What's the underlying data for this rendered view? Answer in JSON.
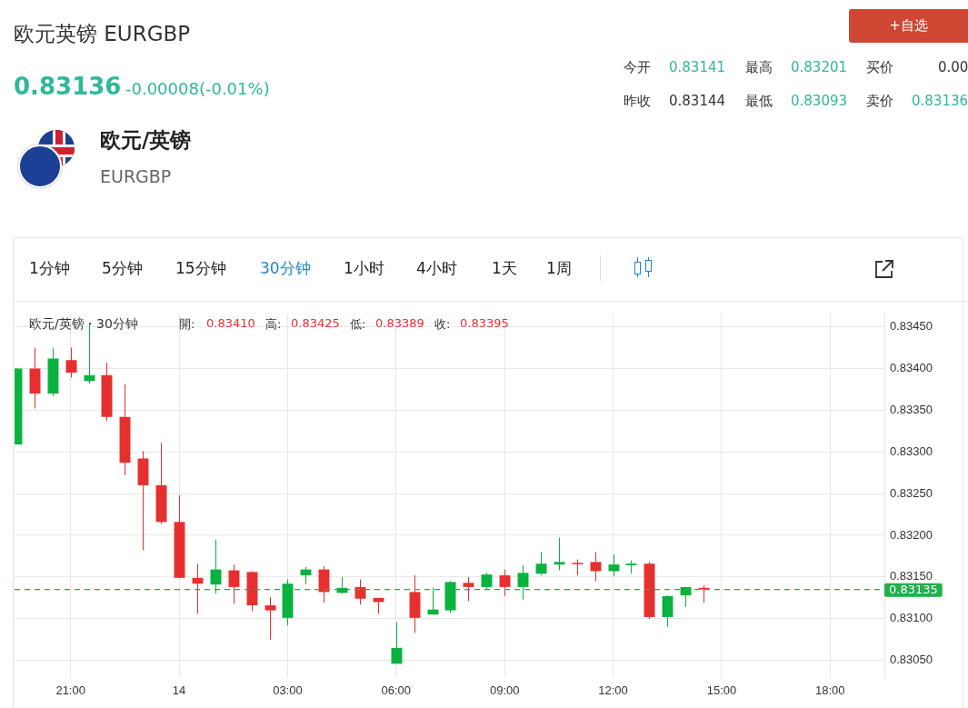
{
  "chart_data": {
    "type": "candlestick",
    "title": "欧元英镑 EURGBP",
    "annotations": [
      "0.83136",
      "-0.00008(-0.01%)",
      "欧元/英镑",
      "EURGBP",
      "今开",
      "0.83141",
      "最高",
      "0.83201",
      "买价",
      "0.00",
      "昨收",
      "0.83144",
      "最低",
      "0.83093",
      "卖价",
      "0.83136",
      "+自选",
      "1分钟",
      "5分钟",
      "15分钟",
      "30分钟",
      "1小时",
      "4小时",
      "1天",
      "1周",
      "欧元/英镑 · 30分钟",
      "開:",
      "0.83410",
      "高:",
      "0.83425",
      "低:",
      "0.83389",
      "收:",
      "0.83395"
    ],
    "categories": [
      null,
      null,
      null,
      "21:00",
      null,
      null,
      null,
      null,
      null,
      "14",
      null,
      null,
      null,
      null,
      null,
      "03:00",
      null,
      null,
      null,
      null,
      null,
      "06:00",
      null,
      null,
      null,
      null,
      null,
      "09:00",
      null,
      null,
      null,
      null,
      null,
      "12:00",
      null,
      null,
      null,
      null,
      null,
      "15:00",
      null,
      null,
      null,
      null,
      null,
      "18:00",
      null,
      null,
      null
    ],
    "ohlc": [
      [
        0.83309,
        0.834,
        0.83309,
        0.834
      ],
      [
        0.834,
        0.83425,
        0.83352,
        0.8337
      ],
      [
        0.8337,
        0.83425,
        0.83367,
        0.83412
      ],
      [
        0.8341,
        0.83425,
        0.83389,
        0.83395
      ],
      [
        0.83385,
        0.83455,
        0.83382,
        0.83392
      ],
      [
        0.83392,
        0.83407,
        0.83337,
        0.83342
      ],
      [
        0.83342,
        0.83381,
        0.83272,
        0.83287
      ],
      [
        0.83292,
        0.83301,
        0.83182,
        0.8326
      ],
      [
        0.8326,
        0.83311,
        0.83214,
        0.83216
      ],
      [
        0.83216,
        0.83248,
        0.83149,
        0.83149
      ],
      [
        0.83149,
        0.83166,
        0.83106,
        0.83142
      ],
      [
        0.83141,
        0.83195,
        0.8313,
        0.83159
      ],
      [
        0.83158,
        0.83165,
        0.83118,
        0.83138
      ],
      [
        0.83156,
        0.83157,
        0.83109,
        0.83116
      ],
      [
        0.83116,
        0.83126,
        0.83075,
        0.8311
      ],
      [
        0.83101,
        0.83147,
        0.83092,
        0.83142
      ],
      [
        0.83152,
        0.83162,
        0.83141,
        0.83159
      ],
      [
        0.83159,
        0.83163,
        0.83119,
        0.83132
      ],
      [
        0.83131,
        0.8315,
        0.8313,
        0.83137
      ],
      [
        0.83138,
        0.83147,
        0.83117,
        0.83124
      ],
      [
        0.83125,
        0.83125,
        0.83106,
        0.8312
      ],
      [
        0.83046,
        0.83096,
        0.83046,
        0.83065
      ],
      [
        0.83132,
        0.83152,
        0.83083,
        0.83101
      ],
      [
        0.83105,
        0.83137,
        0.83105,
        0.83111
      ],
      [
        0.8311,
        0.83145,
        0.83107,
        0.83144
      ],
      [
        0.83143,
        0.8315,
        0.83121,
        0.83138
      ],
      [
        0.83138,
        0.83155,
        0.83135,
        0.83153
      ],
      [
        0.83152,
        0.83159,
        0.83127,
        0.83138
      ],
      [
        0.83138,
        0.83164,
        0.83123,
        0.83155
      ],
      [
        0.83154,
        0.8318,
        0.83152,
        0.83166
      ],
      [
        0.83165,
        0.83197,
        0.83158,
        0.83168
      ],
      [
        0.83167,
        0.83171,
        0.83152,
        0.83166
      ],
      [
        0.83168,
        0.8318,
        0.83145,
        0.83157
      ],
      [
        0.83157,
        0.83177,
        0.83151,
        0.83165
      ],
      [
        0.83164,
        0.8317,
        0.83154,
        0.83166
      ],
      [
        0.83166,
        0.83168,
        0.831,
        0.83102
      ],
      [
        0.83102,
        0.83128,
        0.8309,
        0.83127
      ],
      [
        0.83128,
        0.83138,
        0.83114,
        0.83138
      ],
      [
        0.83137,
        0.8314,
        0.83119,
        0.83135
      ],
      null,
      null,
      null,
      null,
      null,
      null,
      null,
      null,
      null,
      null
    ],
    "colors": [
      "#0ab23f",
      "#e5302f",
      "#0ab23f",
      "#e5302f",
      "#0ab23f",
      "#e5302f",
      "#e5302f",
      "#e5302f",
      "#e5302f",
      "#e5302f",
      "#e5302f",
      "#0ab23f",
      "#e5302f",
      "#e5302f",
      "#e5302f",
      "#0ab23f",
      "#0ab23f",
      "#e5302f",
      "#0ab23f",
      "#e5302f",
      "#e5302f",
      "#0ab23f",
      "#e5302f",
      "#0ab23f",
      "#0ab23f",
      "#e5302f",
      "#0ab23f",
      "#e5302f",
      "#0ab23f",
      "#0ab23f",
      "#0ab23f",
      "#e5302f",
      "#e5302f",
      "#0ab23f",
      "#0ab23f",
      "#e5302f",
      "#0ab23f",
      "#0ab23f",
      "#e5302f",
      null,
      null,
      null,
      null,
      null,
      null,
      null,
      null,
      null,
      null
    ],
    "ylim": [
      0.8303,
      0.83465
    ],
    "yticks": [
      {
        "value": 0.8305,
        "label": "0.83050"
      },
      {
        "value": 0.831,
        "label": "0.83100"
      },
      {
        "value": 0.8315,
        "label": "0.83150"
      },
      {
        "value": 0.832,
        "label": "0.83200"
      },
      {
        "value": 0.8325,
        "label": "0.83250"
      },
      {
        "value": 0.833,
        "label": "0.83300"
      },
      {
        "value": 0.8335,
        "label": "0.83350"
      },
      {
        "value": 0.834,
        "label": "0.83400"
      },
      {
        "value": 0.8345,
        "label": "0.83450"
      }
    ],
    "ref_lines": [
      {
        "axis": "y",
        "value": 0.83135,
        "label": "0.83135",
        "color": "#22b04b",
        "line_style": "dashed"
      }
    ],
    "grid": true
  }
}
